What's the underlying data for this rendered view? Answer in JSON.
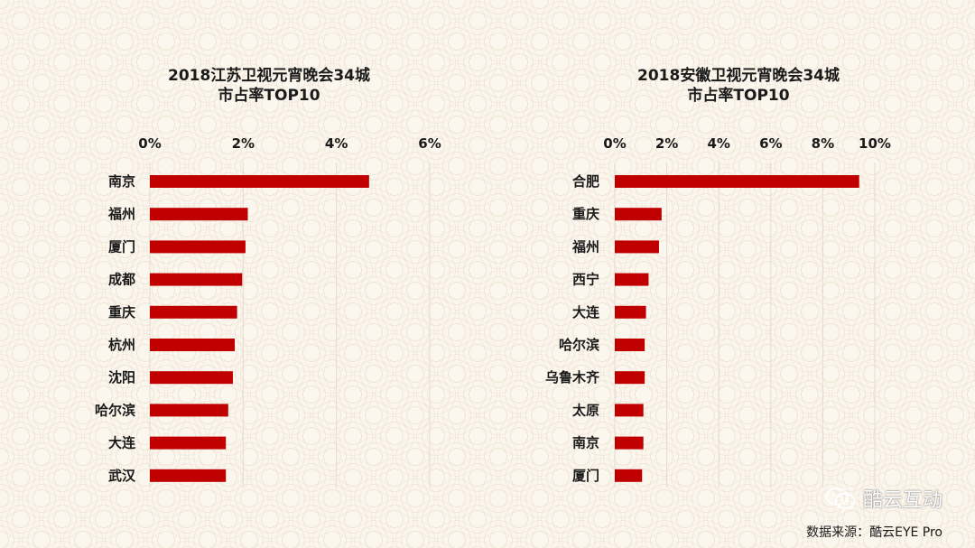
{
  "chart_data": [
    {
      "type": "bar",
      "orientation": "horizontal",
      "title": [
        "2018江苏卫视元宵晚会34城",
        "市占率TOP10"
      ],
      "categories": [
        "南京",
        "福州",
        "厦门",
        "成都",
        "重庆",
        "杭州",
        "沈阳",
        "哈尔滨",
        "大连",
        "武汉"
      ],
      "values": [
        4.7,
        2.1,
        2.05,
        1.98,
        1.87,
        1.82,
        1.78,
        1.68,
        1.63,
        1.63
      ],
      "unit": "%",
      "xlim": [
        0,
        6
      ],
      "xticks": [
        "0%",
        "2%",
        "4%",
        "6%"
      ],
      "axis_position": "top",
      "grid": true,
      "color": "#c00000"
    },
    {
      "type": "bar",
      "orientation": "horizontal",
      "title": [
        "2018安徽卫视元宵晚会34城",
        "市占率TOP10"
      ],
      "categories": [
        "合肥",
        "重庆",
        "福州",
        "西宁",
        "大连",
        "哈尔滨",
        "乌鲁木齐",
        "太原",
        "南京",
        "厦门"
      ],
      "values": [
        9.4,
        1.8,
        1.7,
        1.3,
        1.2,
        1.15,
        1.15,
        1.1,
        1.1,
        1.05
      ],
      "unit": "%",
      "xlim": [
        0,
        10
      ],
      "xticks": [
        "0%",
        "2%",
        "4%",
        "6%",
        "8%",
        "10%"
      ],
      "axis_position": "top",
      "grid": true,
      "color": "#c00000"
    }
  ],
  "watermark": {
    "icon": "wechat-icon",
    "text": "酷云互动"
  },
  "source_text": "数据来源：酷云EYE Pro"
}
